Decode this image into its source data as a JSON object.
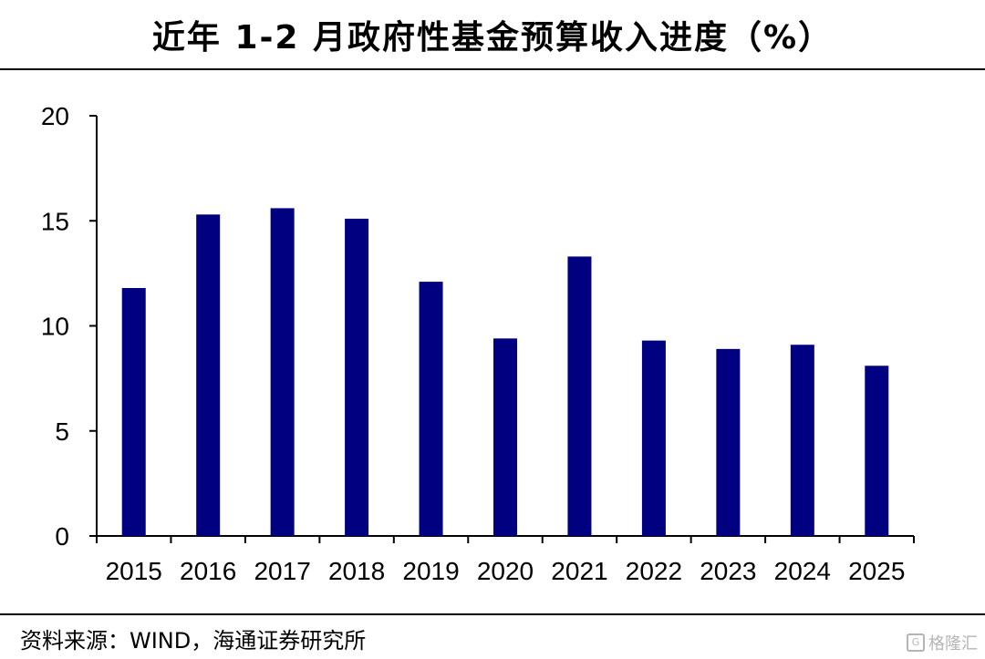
{
  "title": "近年 1-2 月政府性基金预算收入进度（%）",
  "source": "资料来源：WIND，海通证券研究所",
  "watermark": "格隆汇",
  "colors": {
    "bar": "#000080",
    "axis": "#000000"
  },
  "chart_data": {
    "type": "bar",
    "title": "近年 1-2 月政府性基金预算收入进度（%）",
    "xlabel": "",
    "ylabel": "",
    "categories": [
      "2015",
      "2016",
      "2017",
      "2018",
      "2019",
      "2020",
      "2021",
      "2022",
      "2023",
      "2024",
      "2025"
    ],
    "values": [
      11.8,
      15.3,
      15.6,
      15.1,
      12.1,
      9.4,
      13.3,
      9.3,
      8.9,
      9.1,
      8.1
    ],
    "ylim": [
      0,
      20
    ],
    "yticks": [
      0,
      5,
      10,
      15,
      20
    ],
    "grid": false,
    "legend": "none"
  }
}
